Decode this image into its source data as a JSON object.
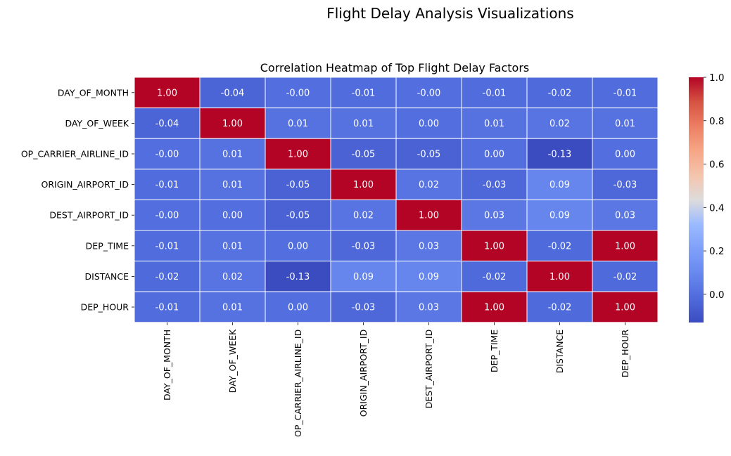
{
  "figure": {
    "suptitle": "Flight Delay Analysis Visualizations"
  },
  "chart_data": {
    "type": "heatmap",
    "title": "Correlation Heatmap of Top Flight Delay Factors",
    "xlabel": "",
    "ylabel": "",
    "colormap": "coolwarm",
    "annotation_format": "0.00",
    "rows": [
      "DAY_OF_MONTH",
      "DAY_OF_WEEK",
      "OP_CARRIER_AIRLINE_ID",
      "ORIGIN_AIRPORT_ID",
      "DEST_AIRPORT_ID",
      "DEP_TIME",
      "DISTANCE",
      "DEP_HOUR"
    ],
    "columns": [
      "DAY_OF_MONTH",
      "DAY_OF_WEEK",
      "OP_CARRIER_AIRLINE_ID",
      "ORIGIN_AIRPORT_ID",
      "DEST_AIRPORT_ID",
      "DEP_TIME",
      "DISTANCE",
      "DEP_HOUR"
    ],
    "values": [
      [
        1.0,
        -0.04,
        -0.0,
        -0.01,
        -0.0,
        -0.01,
        -0.02,
        -0.01
      ],
      [
        -0.04,
        1.0,
        0.01,
        0.01,
        0.0,
        0.01,
        0.02,
        0.01
      ],
      [
        -0.0,
        0.01,
        1.0,
        -0.05,
        -0.05,
        0.0,
        -0.13,
        0.0
      ],
      [
        -0.01,
        0.01,
        -0.05,
        1.0,
        0.02,
        -0.03,
        0.09,
        -0.03
      ],
      [
        -0.0,
        0.0,
        -0.05,
        0.02,
        1.0,
        0.03,
        0.09,
        0.03
      ],
      [
        -0.01,
        0.01,
        0.0,
        -0.03,
        0.03,
        1.0,
        -0.02,
        1.0
      ],
      [
        -0.02,
        0.02,
        -0.13,
        0.09,
        0.09,
        -0.02,
        1.0,
        -0.02
      ],
      [
        -0.01,
        0.01,
        0.0,
        -0.03,
        0.03,
        1.0,
        -0.02,
        1.0
      ]
    ],
    "colorbar": {
      "range": [
        -0.13,
        1.0
      ],
      "ticks": [
        "0.0",
        "0.2",
        "0.4",
        "0.6",
        "0.8",
        "1.0"
      ]
    }
  }
}
